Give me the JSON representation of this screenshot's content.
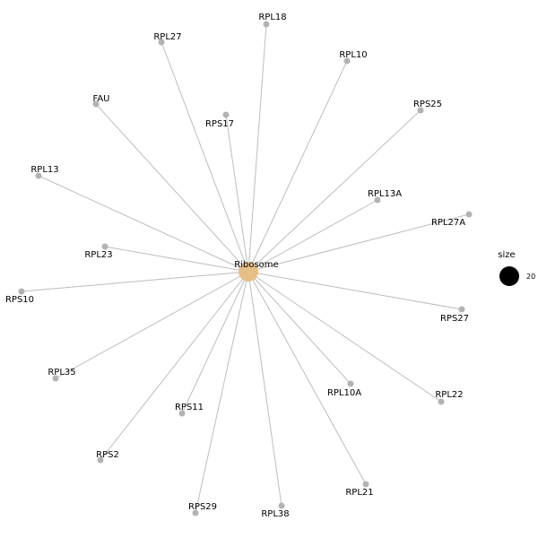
{
  "network": {
    "hub": {
      "label": "Ribosome",
      "color": "#e5bf86"
    },
    "leaf_color": "#b3b3b3",
    "edge_color": "#bdbdbd",
    "genes": [
      "RPL18",
      "RPL27",
      "RPL10",
      "FAU",
      "RPS25",
      "RPS17",
      "RPL13",
      "RPL13A",
      "RPL27A",
      "RPL23",
      "RPS10",
      "RPS27",
      "RPL35",
      "RPL10A",
      "RPL22",
      "RPS11",
      "RPS2",
      "RPL21",
      "RPS29",
      "RPL38"
    ]
  },
  "legend": {
    "title": "size",
    "value": "20",
    "color": "#000000"
  }
}
